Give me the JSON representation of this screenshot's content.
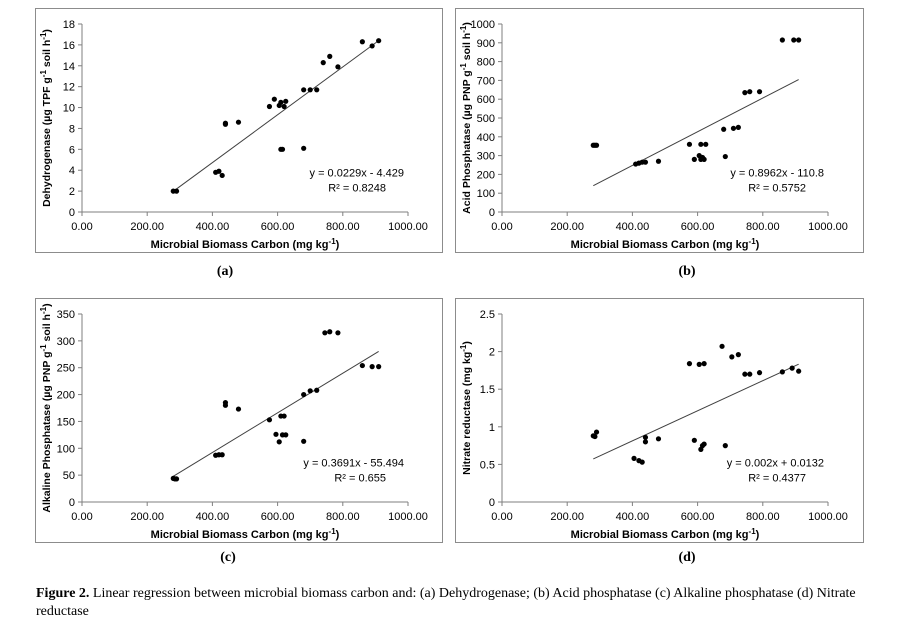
{
  "caption": {
    "bold": "Figure 2.",
    "text": " Linear regression between microbial biomass carbon and: (a) Dehydrogenase; (b) Acid phosphatase (c) Alkaline phosphatase (d) Nitrate reductase"
  },
  "colors": {
    "point": "#000000",
    "trendline": "#404040",
    "frame": "#8c8c8c"
  },
  "chart_data": [
    {
      "id": "a",
      "panel_label": "(a)",
      "type": "scatter",
      "xlabel": "Microbial Biomass Carbon (mg kg-1)",
      "ylabel": "Dehydrogenase (µg TPF g-1 soil h-1)",
      "xlim": [
        0,
        1000
      ],
      "ylim": [
        0,
        18
      ],
      "xticks": [
        "0.00",
        "200.00",
        "400.00",
        "600.00",
        "800.00",
        "1000.00"
      ],
      "yticks": [
        "0",
        "2",
        "4",
        "6",
        "8",
        "10",
        "12",
        "14",
        "16",
        "18"
      ],
      "ytick_values": [
        0,
        2,
        4,
        6,
        8,
        10,
        12,
        14,
        16,
        18
      ],
      "equation": "y = 0.0229x - 4.429",
      "r2": "R² = 0.8248",
      "trendline": {
        "slope": 0.0229,
        "intercept": -4.429,
        "x_range": [
          280,
          910
        ]
      },
      "points": [
        [
          280,
          2.0
        ],
        [
          290,
          2.0
        ],
        [
          410,
          3.8
        ],
        [
          420,
          3.9
        ],
        [
          430,
          3.5
        ],
        [
          440,
          8.5
        ],
        [
          440,
          8.4
        ],
        [
          480,
          8.6
        ],
        [
          575,
          10.1
        ],
        [
          590,
          10.8
        ],
        [
          605,
          10.2
        ],
        [
          610,
          6.0
        ],
        [
          610,
          10.5
        ],
        [
          615,
          6.0
        ],
        [
          620,
          10.1
        ],
        [
          625,
          10.6
        ],
        [
          680,
          11.7
        ],
        [
          680,
          6.1
        ],
        [
          700,
          11.7
        ],
        [
          720,
          11.7
        ],
        [
          740,
          14.3
        ],
        [
          760,
          14.9
        ],
        [
          785,
          13.9
        ],
        [
          860,
          16.3
        ],
        [
          890,
          15.9
        ],
        [
          910,
          16.4
        ]
      ]
    },
    {
      "id": "b",
      "panel_label": "(b)",
      "type": "scatter",
      "xlabel": "Microbial Biomass Carbon (mg kg-1)",
      "ylabel": "Acid Phosphatase (µg PNP g-1 soil h-1)",
      "xlim": [
        0,
        1000
      ],
      "ylim": [
        0,
        1000
      ],
      "xticks": [
        "0.00",
        "200.00",
        "400.00",
        "600.00",
        "800.00",
        "1000.00"
      ],
      "yticks": [
        "0",
        "100",
        "200",
        "300",
        "400",
        "500",
        "600",
        "700",
        "800",
        "900",
        "1000"
      ],
      "ytick_values": [
        0,
        100,
        200,
        300,
        400,
        500,
        600,
        700,
        800,
        900,
        1000
      ],
      "equation": "y = 0.8962x - 110.8",
      "r2": "R² = 0.5752",
      "trendline": {
        "slope": 0.8962,
        "intercept": -110.8,
        "x_range": [
          280,
          910
        ]
      },
      "points": [
        [
          280,
          355
        ],
        [
          285,
          355
        ],
        [
          290,
          355
        ],
        [
          410,
          255
        ],
        [
          420,
          260
        ],
        [
          430,
          265
        ],
        [
          440,
          265
        ],
        [
          480,
          270
        ],
        [
          575,
          360
        ],
        [
          590,
          280
        ],
        [
          605,
          300
        ],
        [
          610,
          360
        ],
        [
          610,
          280
        ],
        [
          615,
          290
        ],
        [
          620,
          280
        ],
        [
          625,
          360
        ],
        [
          680,
          440
        ],
        [
          685,
          295
        ],
        [
          710,
          445
        ],
        [
          725,
          450
        ],
        [
          745,
          635
        ],
        [
          760,
          640
        ],
        [
          790,
          640
        ],
        [
          860,
          915
        ],
        [
          895,
          915
        ],
        [
          910,
          915
        ]
      ]
    },
    {
      "id": "c",
      "panel_label": "(c)",
      "type": "scatter",
      "xlabel": "Microbial Biomass Carbon (mg kg-1)",
      "ylabel": "Alkaline Phosphatase (µg PNP g-1 soil h-1)",
      "xlim": [
        0,
        1000
      ],
      "ylim": [
        0,
        350
      ],
      "xticks": [
        "0.00",
        "200.00",
        "400.00",
        "600.00",
        "800.00",
        "1000.00"
      ],
      "yticks": [
        "0",
        "50",
        "100",
        "150",
        "200",
        "250",
        "300",
        "350"
      ],
      "ytick_values": [
        0,
        50,
        100,
        150,
        200,
        250,
        300,
        350
      ],
      "equation": "y = 0.3691x - 55.494",
      "r2": "R² = 0.655",
      "trendline": {
        "slope": 0.3691,
        "intercept": -55.494,
        "x_range": [
          280,
          910
        ]
      },
      "points": [
        [
          280,
          44
        ],
        [
          285,
          43
        ],
        [
          290,
          43
        ],
        [
          410,
          87
        ],
        [
          420,
          88
        ],
        [
          430,
          88
        ],
        [
          440,
          180
        ],
        [
          440,
          185
        ],
        [
          480,
          173
        ],
        [
          575,
          153
        ],
        [
          595,
          126
        ],
        [
          605,
          112
        ],
        [
          610,
          160
        ],
        [
          615,
          125
        ],
        [
          620,
          160
        ],
        [
          625,
          125
        ],
        [
          680,
          200
        ],
        [
          680,
          113
        ],
        [
          700,
          207
        ],
        [
          720,
          208
        ],
        [
          745,
          315
        ],
        [
          760,
          317
        ],
        [
          785,
          315
        ],
        [
          860,
          254
        ],
        [
          890,
          252
        ],
        [
          910,
          252
        ]
      ]
    },
    {
      "id": "d",
      "panel_label": "(d)",
      "type": "scatter",
      "xlabel": "Microbial Biomass Carbon (mg kg-1)",
      "ylabel": "Nitrate reductase (mg kg-1)",
      "xlim": [
        0,
        1000
      ],
      "ylim": [
        0,
        2.5
      ],
      "xticks": [
        "0.00",
        "200.00",
        "400.00",
        "600.00",
        "800.00",
        "1000.00"
      ],
      "yticks": [
        "0",
        "0.5",
        "1",
        "1.5",
        "2",
        "2.5"
      ],
      "ytick_values": [
        0,
        0.5,
        1,
        1.5,
        2,
        2.5
      ],
      "equation": "y = 0.002x + 0.0132",
      "r2": "R² = 0.4377",
      "trendline": {
        "slope": 0.002,
        "intercept": 0.0132,
        "x_range": [
          280,
          910
        ]
      },
      "points": [
        [
          280,
          0.88
        ],
        [
          285,
          0.87
        ],
        [
          290,
          0.93
        ],
        [
          405,
          0.58
        ],
        [
          420,
          0.55
        ],
        [
          430,
          0.53
        ],
        [
          440,
          0.8
        ],
        [
          440,
          0.86
        ],
        [
          480,
          0.84
        ],
        [
          575,
          1.84
        ],
        [
          590,
          0.82
        ],
        [
          605,
          1.83
        ],
        [
          610,
          0.7
        ],
        [
          615,
          0.75
        ],
        [
          620,
          0.77
        ],
        [
          620,
          1.84
        ],
        [
          675,
          2.07
        ],
        [
          685,
          0.75
        ],
        [
          705,
          1.93
        ],
        [
          725,
          1.96
        ],
        [
          745,
          1.7
        ],
        [
          760,
          1.7
        ],
        [
          790,
          1.72
        ],
        [
          860,
          1.73
        ],
        [
          890,
          1.78
        ],
        [
          910,
          1.74
        ]
      ]
    }
  ]
}
